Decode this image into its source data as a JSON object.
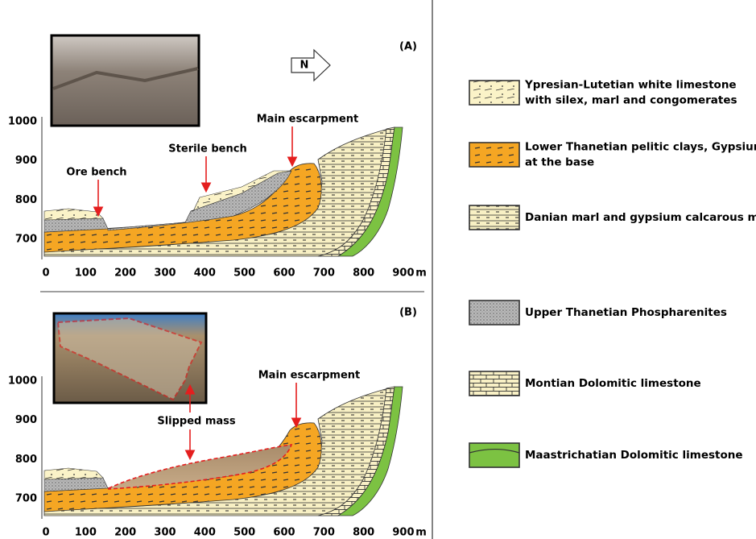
{
  "panel_a": {
    "label": "(A)",
    "annotations": [
      "Ore bench",
      "Sterile bench",
      "Main escarpment"
    ]
  },
  "panel_b": {
    "label": "(B)",
    "annotations": [
      "Slipped mass",
      "Main escarpment"
    ]
  },
  "north": "N",
  "axes": {
    "x_ticks": [
      0,
      100,
      200,
      300,
      400,
      500,
      600,
      700,
      800,
      900
    ],
    "x_unit": "m",
    "y_ticks": [
      700,
      800,
      900,
      1000
    ]
  },
  "legend": [
    {
      "lines": [
        "Ypresian-Lutetian white limestone",
        "with silex, marl and congomerates"
      ]
    },
    {
      "lines": [
        "Lower Thanetian pelitic clays, Gypsium",
        "at the base"
      ]
    },
    {
      "lines": [
        "Danian marl and gypsium calcarous marl"
      ]
    },
    {
      "lines": [
        "Upper Thanetian Phospharenites"
      ]
    },
    {
      "lines": [
        "Montian Dolomitic limestone"
      ]
    },
    {
      "lines": [
        "Maastrichatian Dolomitic limestone"
      ]
    }
  ]
}
